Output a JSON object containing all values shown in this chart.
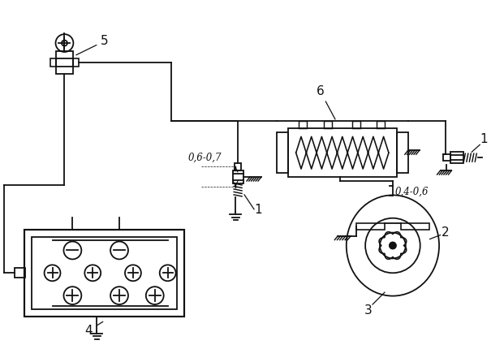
{
  "bg_color": "#ffffff",
  "line_color": "#111111",
  "lw": 1.3,
  "figsize": [
    6.21,
    4.46
  ],
  "dpi": 100,
  "gap1_text": "0,6-0,7",
  "gap2_text": "0,4-0,6"
}
